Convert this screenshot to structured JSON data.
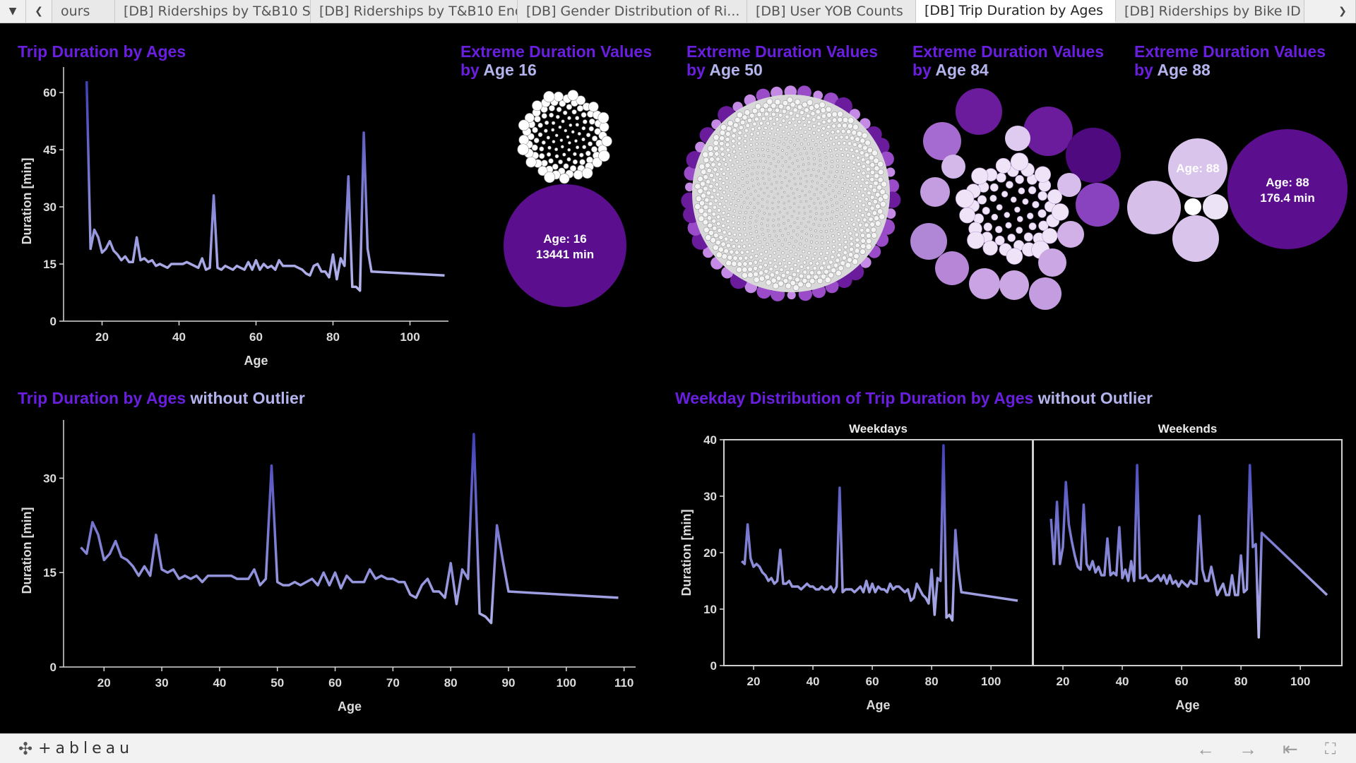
{
  "tabs": [
    {
      "label": "ours",
      "active": false
    },
    {
      "label": "[DB] Riderships by T&B10 Star...",
      "active": false
    },
    {
      "label": "[DB] Riderships by T&B10 End ...",
      "active": false
    },
    {
      "label": "[DB] Gender Distribution of Ri...",
      "active": false
    },
    {
      "label": "[DB] User YOB Counts",
      "active": false
    },
    {
      "label": "[DB] Trip Duration by Ages",
      "active": true
    },
    {
      "label": "[DB] Riderships by Bike ID",
      "active": false
    }
  ],
  "titles": {
    "tl": {
      "p": "Trip Duration by Ages"
    },
    "age16": {
      "p1": "Extreme Duration Values",
      "p2": "by ",
      "l2": "Age 16"
    },
    "age50": {
      "p1": "Extreme Duration Values",
      "p2": "by ",
      "l2": "Age 50"
    },
    "age84": {
      "p1": "Extreme Duration Values",
      "p2": "by ",
      "l2": "Age 84"
    },
    "age88": {
      "p1": "Extreme Duration Values",
      "p2": "by ",
      "l2": "Age 88"
    },
    "bl": {
      "p": "Trip Duration by Ages",
      "l": " without Outlier"
    },
    "br": {
      "p": "Weekday Distribution of Trip Duration by Ages",
      "l": " without Outlier"
    }
  },
  "colors": {
    "purple_title": "#6a1fe0",
    "lavender": "#b4b4ee",
    "line_top": "#3f3fb8",
    "line_bottom": "#c9c9f4",
    "bubble_dark": "#5b0f8f"
  },
  "chart_data": [
    {
      "id": "top-line",
      "type": "line",
      "xlabel": "Age",
      "ylabel": "Duration [min]",
      "xlim": [
        10,
        110
      ],
      "ylim": [
        0,
        63
      ],
      "xticks": [
        20,
        40,
        60,
        80,
        100
      ],
      "yticks": [
        0,
        15,
        30,
        45,
        60
      ],
      "x": [
        16,
        17,
        18,
        19,
        20,
        21,
        22,
        23,
        24,
        25,
        26,
        27,
        28,
        29,
        30,
        31,
        32,
        33,
        34,
        35,
        36,
        37,
        38,
        39,
        40,
        41,
        42,
        43,
        44,
        45,
        46,
        47,
        48,
        49,
        50,
        51,
        52,
        53,
        54,
        55,
        56,
        57,
        58,
        59,
        60,
        61,
        62,
        63,
        64,
        65,
        66,
        67,
        68,
        69,
        70,
        71,
        72,
        73,
        74,
        75,
        76,
        77,
        78,
        79,
        80,
        81,
        82,
        83,
        84,
        85,
        86,
        87,
        88,
        89,
        90,
        109
      ],
      "y": [
        63,
        19,
        24,
        22,
        18,
        19,
        21,
        18.5,
        17.5,
        16,
        17,
        15.5,
        15.5,
        22,
        16,
        16.5,
        15.5,
        16,
        14.5,
        15,
        14.5,
        14,
        15,
        15,
        15,
        15,
        15.5,
        15,
        14.5,
        14,
        16.5,
        13.5,
        14,
        33,
        14,
        13.5,
        14.5,
        14,
        13.5,
        14.5,
        14,
        13.5,
        15.5,
        13.5,
        16,
        13.5,
        15,
        14,
        14.5,
        13.5,
        16,
        14.5,
        14.5,
        14.5,
        14.5,
        14,
        13.5,
        12.5,
        12,
        14.5,
        15,
        13,
        13,
        11.5,
        17.5,
        11,
        16.5,
        14.5,
        38,
        9,
        9,
        8,
        49.5,
        19,
        13,
        12
      ]
    },
    {
      "id": "bottom-line",
      "type": "line",
      "xlabel": "Age",
      "ylabel": "Duration [min]",
      "xlim": [
        13,
        112
      ],
      "ylim": [
        0,
        37
      ],
      "xticks": [
        20,
        30,
        40,
        50,
        60,
        70,
        80,
        90,
        100,
        110
      ],
      "yticks": [
        0,
        15,
        30
      ],
      "x": [
        16,
        17,
        18,
        19,
        20,
        21,
        22,
        23,
        24,
        25,
        26,
        27,
        28,
        29,
        30,
        31,
        32,
        33,
        34,
        35,
        36,
        37,
        38,
        39,
        40,
        41,
        42,
        43,
        44,
        45,
        46,
        47,
        48,
        49,
        50,
        51,
        52,
        53,
        54,
        55,
        56,
        57,
        58,
        59,
        60,
        61,
        62,
        63,
        64,
        65,
        66,
        67,
        68,
        69,
        70,
        71,
        72,
        73,
        74,
        75,
        76,
        77,
        78,
        79,
        80,
        81,
        82,
        83,
        84,
        85,
        86,
        87,
        88,
        89,
        90,
        109
      ],
      "y": [
        19,
        18,
        23,
        21,
        17,
        18,
        20,
        17.5,
        17,
        16,
        14.5,
        16,
        14.5,
        21,
        15.5,
        15,
        15.5,
        14,
        14.5,
        14,
        14.5,
        13.5,
        14.5,
        14.5,
        14.5,
        14.5,
        14.5,
        14,
        14,
        14,
        15.5,
        13,
        14,
        32,
        13.5,
        13,
        13,
        13.5,
        13,
        13.5,
        14,
        13,
        15,
        13,
        15,
        12.5,
        14.5,
        13.5,
        13.5,
        13.5,
        15.5,
        14,
        14.5,
        14,
        14,
        13.5,
        13.5,
        11.5,
        11,
        13,
        14,
        12,
        12,
        11,
        16.5,
        10,
        15.5,
        14,
        37,
        8.5,
        8,
        7,
        22.5,
        17,
        12,
        11
      ]
    },
    {
      "id": "weekdays-line",
      "type": "line",
      "title": "Weekdays",
      "xlabel": "Age",
      "ylabel": "Duration [min]",
      "xlim": [
        10,
        114
      ],
      "ylim": [
        0,
        40
      ],
      "xticks": [
        20,
        40,
        60,
        80,
        100
      ],
      "yticks": [
        0,
        10,
        20,
        30,
        40
      ],
      "x": [
        16,
        17,
        18,
        19,
        20,
        21,
        22,
        23,
        24,
        25,
        26,
        27,
        28,
        29,
        30,
        31,
        32,
        33,
        34,
        35,
        36,
        37,
        38,
        39,
        40,
        41,
        42,
        43,
        44,
        45,
        46,
        47,
        48,
        49,
        50,
        51,
        52,
        53,
        54,
        55,
        56,
        57,
        58,
        59,
        60,
        61,
        62,
        63,
        64,
        65,
        66,
        67,
        68,
        69,
        70,
        71,
        72,
        73,
        74,
        75,
        76,
        77,
        78,
        79,
        80,
        81,
        82,
        83,
        84,
        85,
        86,
        87,
        88,
        89,
        90,
        109
      ],
      "y": [
        18.5,
        18,
        25,
        19,
        17.5,
        18,
        17.5,
        16.5,
        16,
        15,
        15.5,
        14.5,
        15,
        20.5,
        14.5,
        14.5,
        15,
        14,
        14,
        14,
        13.5,
        14,
        14.5,
        14,
        14,
        13.5,
        13.5,
        14,
        13.5,
        13.5,
        14,
        13,
        14,
        31.5,
        13,
        13.5,
        13.5,
        13.5,
        13,
        13.5,
        14,
        13,
        15,
        13,
        14.5,
        13,
        14,
        13.5,
        13.5,
        13,
        14.5,
        13.5,
        14,
        14,
        13.5,
        13,
        13.5,
        11.5,
        12,
        14.5,
        13.5,
        12.5,
        12,
        11,
        17,
        9,
        15.5,
        15,
        39,
        8.5,
        9,
        8,
        24,
        17,
        13,
        11.5
      ]
    },
    {
      "id": "weekends-line",
      "type": "line",
      "title": "Weekends",
      "xlabel": "Age",
      "xlim": [
        10,
        114
      ],
      "ylim": [
        0,
        40
      ],
      "xticks": [
        20,
        40,
        60,
        80,
        100
      ],
      "x": [
        16,
        17,
        18,
        19,
        20,
        21,
        22,
        23,
        24,
        25,
        26,
        27,
        28,
        29,
        30,
        31,
        32,
        33,
        34,
        35,
        36,
        37,
        38,
        39,
        40,
        41,
        42,
        43,
        44,
        45,
        46,
        47,
        48,
        49,
        50,
        51,
        52,
        53,
        54,
        55,
        56,
        57,
        58,
        59,
        60,
        61,
        62,
        63,
        64,
        65,
        66,
        67,
        68,
        69,
        70,
        71,
        72,
        73,
        74,
        75,
        76,
        77,
        78,
        79,
        80,
        81,
        82,
        83,
        84,
        85,
        86,
        87,
        88,
        89,
        90,
        109
      ],
      "y": [
        26,
        18,
        29,
        18,
        21,
        32.5,
        25,
        22,
        19.5,
        17.5,
        17,
        28.5,
        18,
        17,
        18.5,
        16.5,
        17.5,
        16,
        16,
        22.5,
        16,
        16.5,
        16,
        24.5,
        15.5,
        17,
        15,
        18.5,
        15,
        35.5,
        15.5,
        15.5,
        16,
        15,
        15,
        15.5,
        16,
        15,
        16,
        14.5,
        16,
        14.5,
        15,
        14,
        15,
        14.5,
        14,
        15,
        14.5,
        14.5,
        26.5,
        17,
        15,
        15,
        17.5,
        15,
        12.5,
        13.5,
        14.5,
        12.5,
        12.5,
        16,
        12.5,
        12.5,
        19.5,
        13,
        13.5,
        35.5,
        21,
        21.5,
        5,
        23.5,
        23,
        22.5,
        22,
        12.5
      ]
    },
    {
      "id": "bubbles-age16",
      "type": "bubble",
      "callout_label": "Age: 16",
      "callout_value": "13441 min",
      "small_bubble_count": 120
    },
    {
      "id": "bubbles-age50",
      "type": "bubble",
      "small_bubble_count": 900
    },
    {
      "id": "bubbles-age84",
      "type": "bubble",
      "small_bubble_count": 60
    },
    {
      "id": "bubbles-age88",
      "type": "bubble",
      "callout_label": "Age: 88",
      "callout_value": "176.4 min",
      "secondary_label": "Age: 88"
    }
  ]
}
